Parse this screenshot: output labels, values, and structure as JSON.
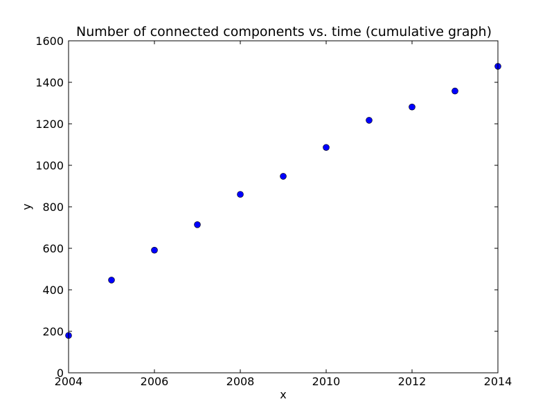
{
  "chart_data": {
    "type": "scatter",
    "title": "Number of connected components vs. time (cumulative graph)",
    "xlabel": "x",
    "ylabel": "y",
    "xlim": [
      2004,
      2014
    ],
    "ylim": [
      0,
      1600
    ],
    "xticks": [
      2004,
      2006,
      2008,
      2010,
      2012,
      2014
    ],
    "yticks": [
      0,
      200,
      400,
      600,
      800,
      1000,
      1200,
      1400,
      1600
    ],
    "grid": false,
    "marker_color": "#0000ff",
    "marker_edge_color": "#000000",
    "series": [
      {
        "points": [
          {
            "x": 2004,
            "y": 180
          },
          {
            "x": 2005,
            "y": 447
          },
          {
            "x": 2006,
            "y": 591
          },
          {
            "x": 2007,
            "y": 714
          },
          {
            "x": 2008,
            "y": 860
          },
          {
            "x": 2009,
            "y": 947
          },
          {
            "x": 2010,
            "y": 1086
          },
          {
            "x": 2011,
            "y": 1217
          },
          {
            "x": 2012,
            "y": 1281
          },
          {
            "x": 2013,
            "y": 1358
          },
          {
            "x": 2014,
            "y": 1477
          }
        ]
      }
    ]
  }
}
